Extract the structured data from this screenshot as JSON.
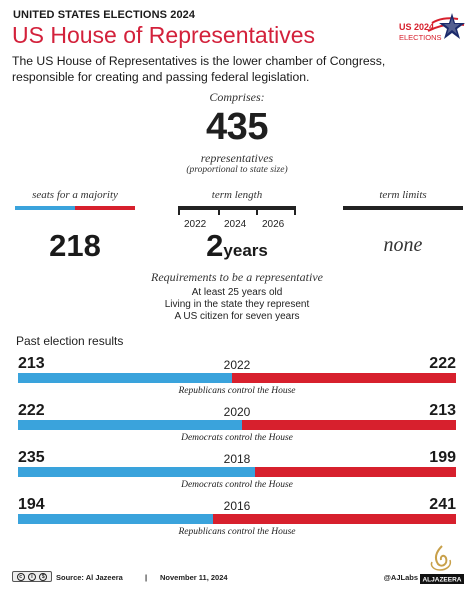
{
  "header": {
    "kicker": "UNITED STATES ELECTIONS 2024",
    "title": "US House of Representatives",
    "subtitle": "The US House of Representatives is the lower chamber of Congress, responsible for creating and passing federal legislation."
  },
  "logo": {
    "line1": "US 2024",
    "line2": "ELECTIONS",
    "icon": "star-icon"
  },
  "comprises": {
    "label": "Comprises:",
    "number": "435",
    "unit": "representatives",
    "note": "(proportional to state size)"
  },
  "stats": {
    "majority": {
      "label": "seats for a majority",
      "value": "218"
    },
    "term": {
      "label": "term length",
      "years": [
        "2022",
        "2024",
        "2026"
      ],
      "value": "2",
      "unit": "years"
    },
    "limits": {
      "label": "term limits",
      "value": "none"
    }
  },
  "requirements": {
    "title": "Requirements to be a representative",
    "items": [
      "At least 25 years old",
      "Living in the state they represent",
      "A US citizen for seven years"
    ]
  },
  "past": {
    "title": "Past election results",
    "results": [
      {
        "year": "2022",
        "democrats": 213,
        "republicans": 222,
        "caption": "Republicans control the House"
      },
      {
        "year": "2020",
        "democrats": 222,
        "republicans": 213,
        "caption": "Democrats control the House"
      },
      {
        "year": "2018",
        "democrats": 235,
        "republicans": 199,
        "caption": "Democrats control the House"
      },
      {
        "year": "2016",
        "democrats": 194,
        "republicans": 241,
        "caption": "Republicans control the House"
      }
    ]
  },
  "colors": {
    "democrat": "#3aa3dc",
    "republican": "#d7202d",
    "title": "#d3213b"
  },
  "footer": {
    "license_icon": "creative-commons-icon",
    "source": "Source:  Al Jazeera",
    "separator": "|",
    "date": "November 11, 2024",
    "handle": "@AJLabs",
    "brand": "ALJAZEERA"
  }
}
